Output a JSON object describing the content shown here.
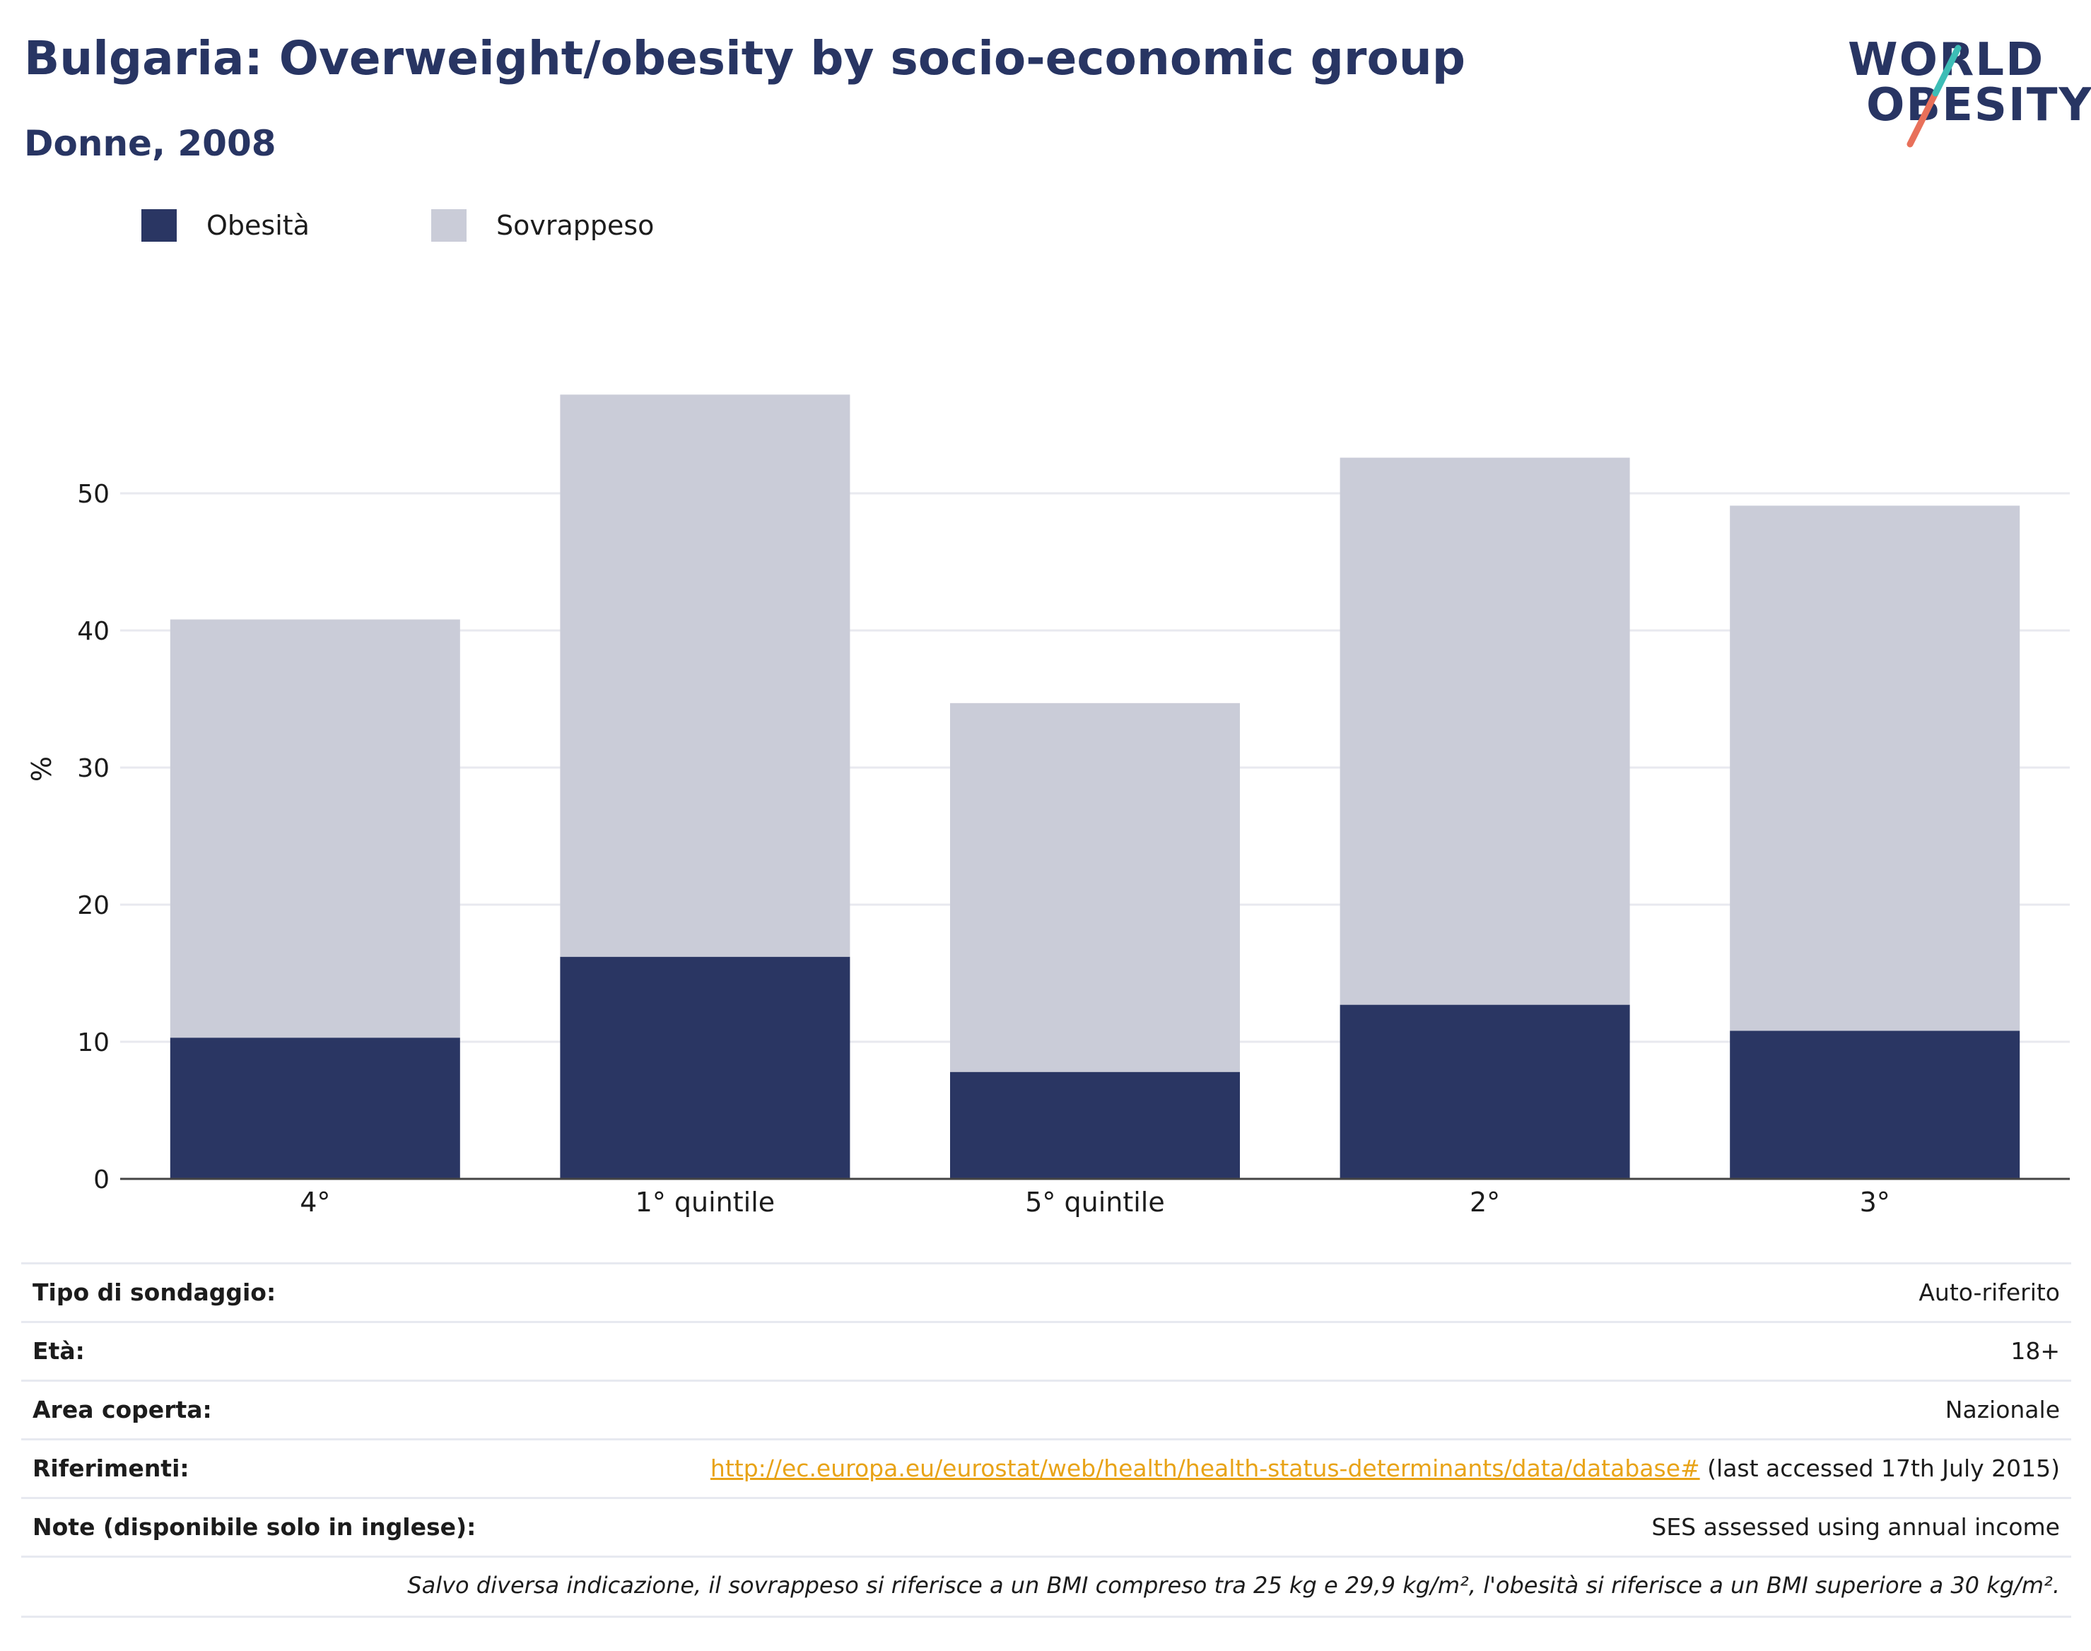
{
  "header": {
    "title": "Bulgaria: Overweight/obesity by socio-economic group",
    "subtitle": "Donne, 2008"
  },
  "logo": {
    "line1": "WORLD",
    "line2": "OBESITY",
    "accent_teal": "#3dbdb6",
    "accent_coral": "#e8705a"
  },
  "legend": [
    {
      "label": "Obesità",
      "color": "#2a3663"
    },
    {
      "label": "Sovrappeso",
      "color": "#caccd8"
    }
  ],
  "chart_data": {
    "type": "bar",
    "stacked": true,
    "categories": [
      "4°",
      "1° quintile",
      "5° quintile",
      "2°",
      "3°"
    ],
    "series": [
      {
        "name": "Obesità",
        "color": "#2a3663",
        "values": [
          10.3,
          16.2,
          7.8,
          12.7,
          10.8
        ]
      },
      {
        "name": "Sovrappeso",
        "color": "#caccd8",
        "values": [
          30.5,
          41.0,
          26.9,
          39.9,
          38.3
        ]
      }
    ],
    "ylabel": "%",
    "ylim": [
      0,
      60
    ],
    "yticks": [
      0,
      10,
      20,
      30,
      40,
      50
    ],
    "grid": true,
    "legend_position": "top-left"
  },
  "info_table": [
    {
      "key": "Tipo di sondaggio:",
      "value": "Auto-riferito"
    },
    {
      "key": "Età:",
      "value": "18+"
    },
    {
      "key": "Area coperta:",
      "value": "Nazionale"
    },
    {
      "key": "Riferimenti:",
      "link": "http://ec.europa.eu/eurostat/web/health/health-status-determinants/data/database#",
      "value": " (last accessed 17th July 2015)"
    },
    {
      "key": "Note (disponibile solo in inglese):",
      "value": "SES assessed using annual income"
    }
  ],
  "footnote": "Salvo diversa indicazione, il sovrappeso si riferisce a un BMI compreso tra 25 kg e 29,9 kg/m², l'obesità si riferisce a un BMI superiore a 30 kg/m²."
}
